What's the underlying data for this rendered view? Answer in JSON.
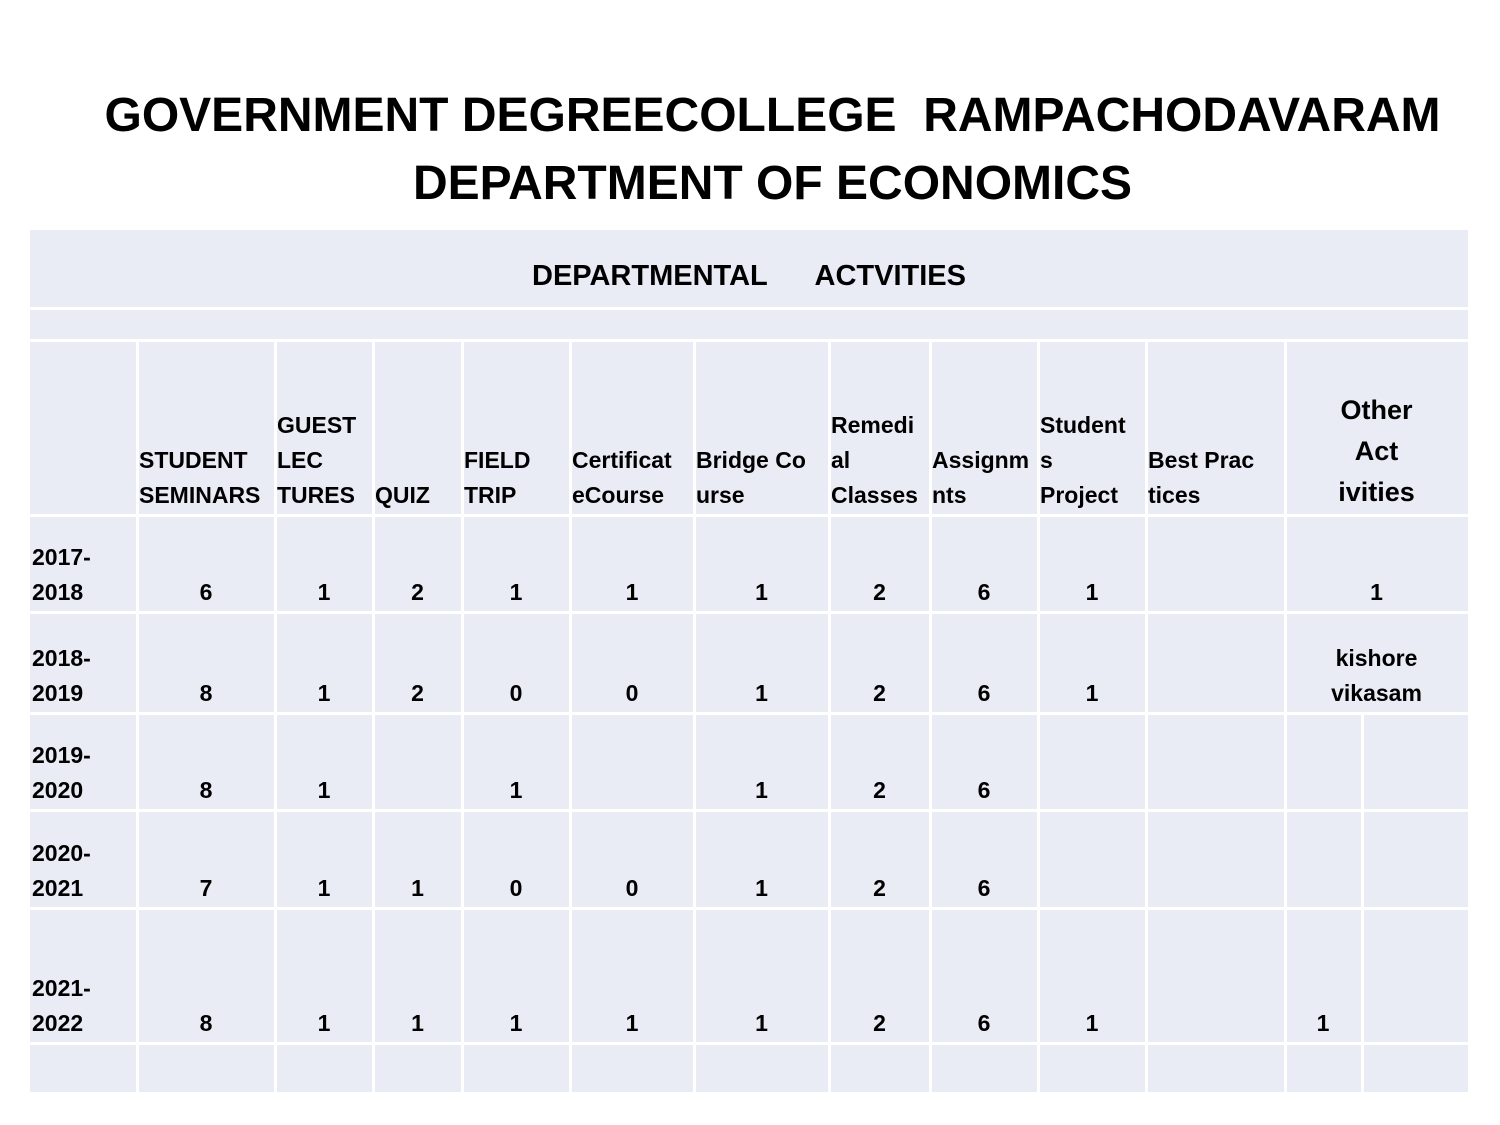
{
  "header": {
    "title": "GOVERNMENT DEGREECOLLEGE  RAMPACHODAVARAM",
    "subtitle": "DEPARTMENT OF ECONOMICS"
  },
  "table": {
    "caption": "DEPARTMENTAL      ACTVITIES",
    "columns": [
      "STUDENT\nSEMINARS",
      "GUEST\nLEC\nTURES",
      "QUIZ",
      "FIELD\nTRIP",
      "Certificat\neCourse",
      "Bridge Co\nurse",
      "Remedi\nal\nClasses",
      "Assignm\nnts",
      "Student\ns\nProject",
      "Best Prac\ntices",
      "Other\nAct\nivities"
    ],
    "rows": [
      [
        "2017-\n2018",
        6,
        1,
        2,
        1,
        1,
        1,
        2,
        6,
        1,
        null,
        1
      ],
      [
        "2018-\n2019",
        8,
        1,
        2,
        0,
        0,
        1,
        2,
        6,
        1,
        null,
        "kishore\nvikasam"
      ],
      [
        "2019-\n2020",
        8,
        1,
        null,
        1,
        null,
        1,
        2,
        6,
        null,
        null,
        null
      ],
      [
        "2020-\n2021",
        7,
        1,
        1,
        0,
        0,
        1,
        2,
        6,
        null,
        null,
        null
      ],
      [
        "2021-\n2022",
        8,
        1,
        1,
        1,
        1,
        1,
        2,
        6,
        1,
        null,
        1
      ]
    ]
  }
}
